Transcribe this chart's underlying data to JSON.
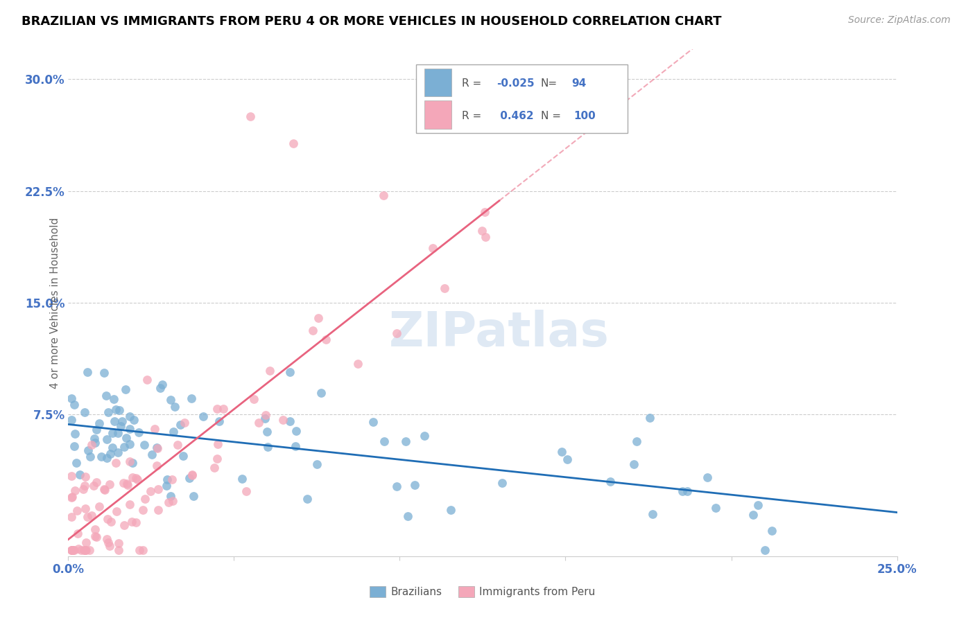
{
  "title": "BRAZILIAN VS IMMIGRANTS FROM PERU 4 OR MORE VEHICLES IN HOUSEHOLD CORRELATION CHART",
  "source": "Source: ZipAtlas.com",
  "ylabel": "4 or more Vehicles in Household",
  "xlim": [
    0.0,
    0.25
  ],
  "ylim": [
    -0.02,
    0.32
  ],
  "ytick_vals": [
    0.0,
    0.075,
    0.15,
    0.225,
    0.3
  ],
  "ytick_labels": [
    "",
    "7.5%",
    "15.0%",
    "22.5%",
    "30.0%"
  ],
  "xtick_vals": [
    0.0,
    0.05,
    0.1,
    0.15,
    0.2,
    0.25
  ],
  "xtick_labels": [
    "0.0%",
    "",
    "",
    "",
    "",
    "25.0%"
  ],
  "blue_R": -0.025,
  "blue_N": 94,
  "pink_R": 0.462,
  "pink_N": 100,
  "blue_color": "#7bafd4",
  "pink_color": "#f4a7b9",
  "blue_line_color": "#1f6db5",
  "pink_line_color": "#e8637f",
  "tick_color": "#4472c4",
  "grid_color": "#cccccc",
  "watermark": "ZIPatlas",
  "legend_label_blue": "Brazilians",
  "legend_label_pink": "Immigrants from Peru"
}
